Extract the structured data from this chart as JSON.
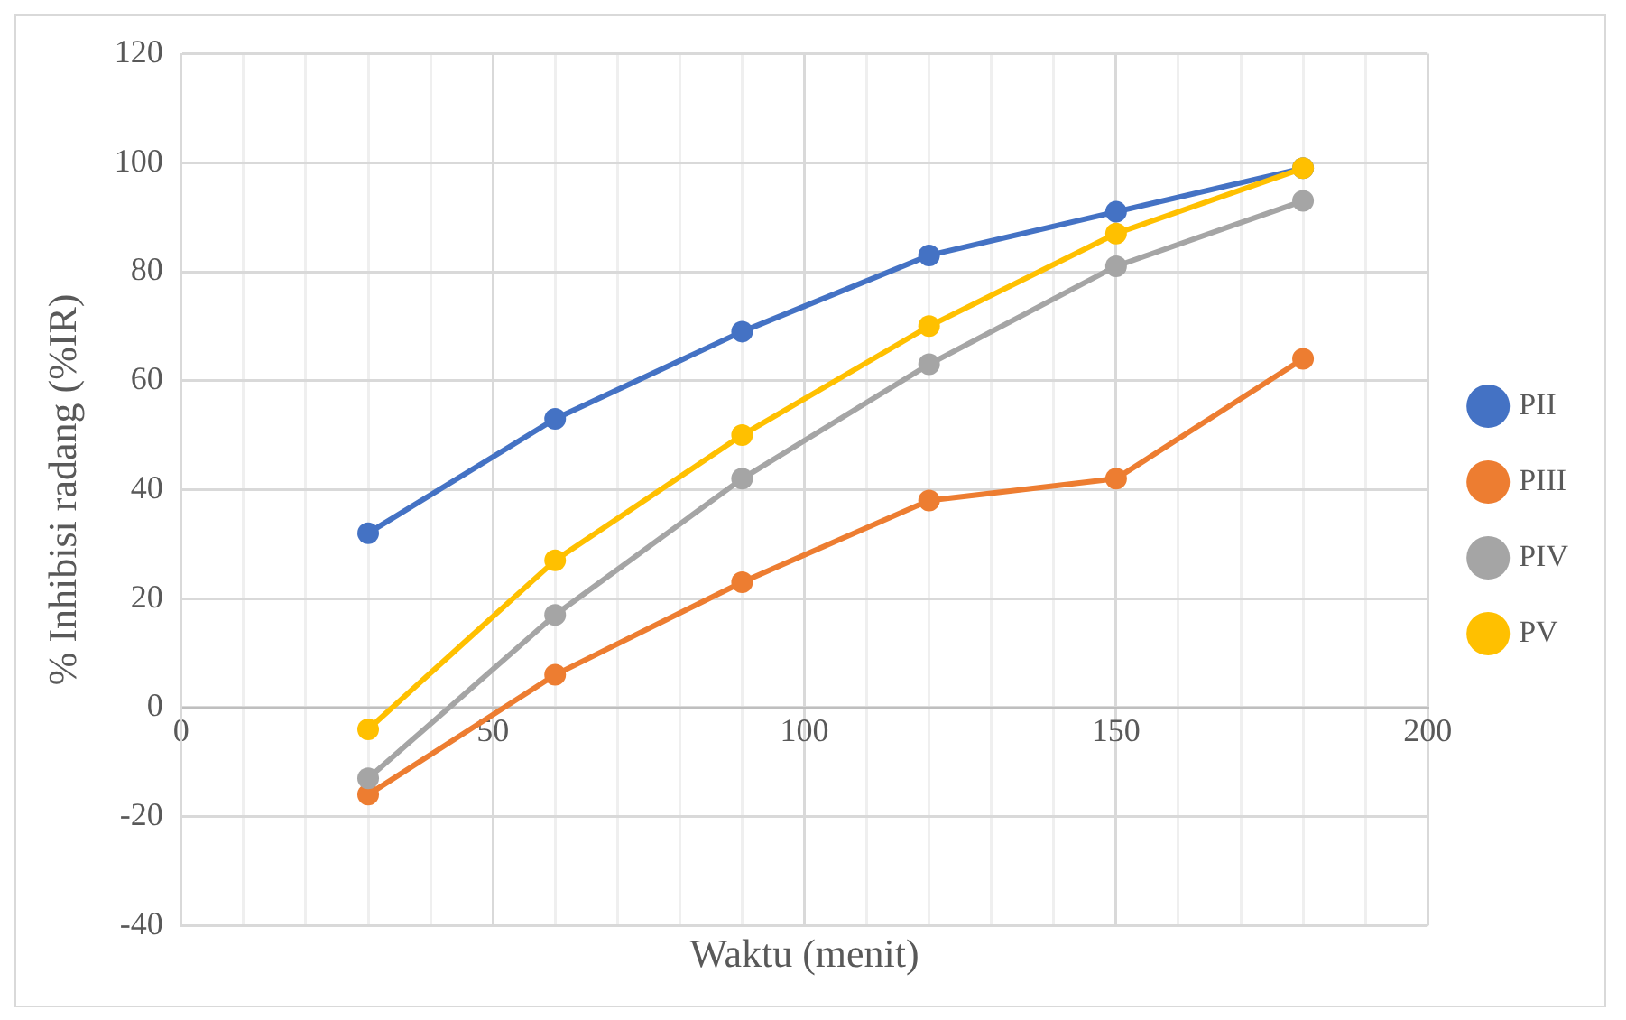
{
  "chart_data": {
    "type": "line",
    "xlabel": "Waktu (menit)",
    "ylabel": "% Inhibisi radang (%IR)",
    "x": [
      30,
      60,
      90,
      120,
      150,
      180
    ],
    "series": [
      {
        "name": "PII",
        "color": "#4472c4",
        "values": [
          32,
          53,
          69,
          83,
          91,
          99
        ]
      },
      {
        "name": "PIII",
        "color": "#ed7d31",
        "values": [
          -16,
          6,
          23,
          38,
          42,
          64
        ]
      },
      {
        "name": "PIV",
        "color": "#a5a5a5",
        "values": [
          -13,
          17,
          42,
          63,
          81,
          93
        ]
      },
      {
        "name": "PV",
        "color": "#ffc000",
        "values": [
          -4,
          27,
          50,
          70,
          87,
          99
        ]
      }
    ],
    "xlim": [
      0,
      200
    ],
    "xticks": [
      0,
      {
        "value": 10,
        "label": null
      },
      {
        "value": 20,
        "label": null
      },
      {
        "value": 30,
        "label": null
      },
      {
        "value": 40,
        "label": null
      },
      50,
      {
        "value": 60,
        "label": null
      },
      {
        "value": 70,
        "label": null
      },
      {
        "value": 80,
        "label": null
      },
      {
        "value": 90,
        "label": null
      },
      100,
      {
        "value": 110,
        "label": null
      },
      {
        "value": 120,
        "label": null
      },
      {
        "value": 130,
        "label": null
      },
      {
        "value": 140,
        "label": null
      },
      150,
      {
        "value": 160,
        "label": null
      },
      {
        "value": 170,
        "label": null
      },
      {
        "value": 180,
        "label": null
      },
      {
        "value": 190,
        "label": null
      },
      200
    ],
    "ylim": [
      -40,
      120
    ],
    "yticks": [
      -40,
      -20,
      0,
      20,
      40,
      60,
      80,
      100,
      120
    ],
    "grid": true,
    "legend": "right",
    "marker": "circle",
    "line_style": "solid"
  }
}
